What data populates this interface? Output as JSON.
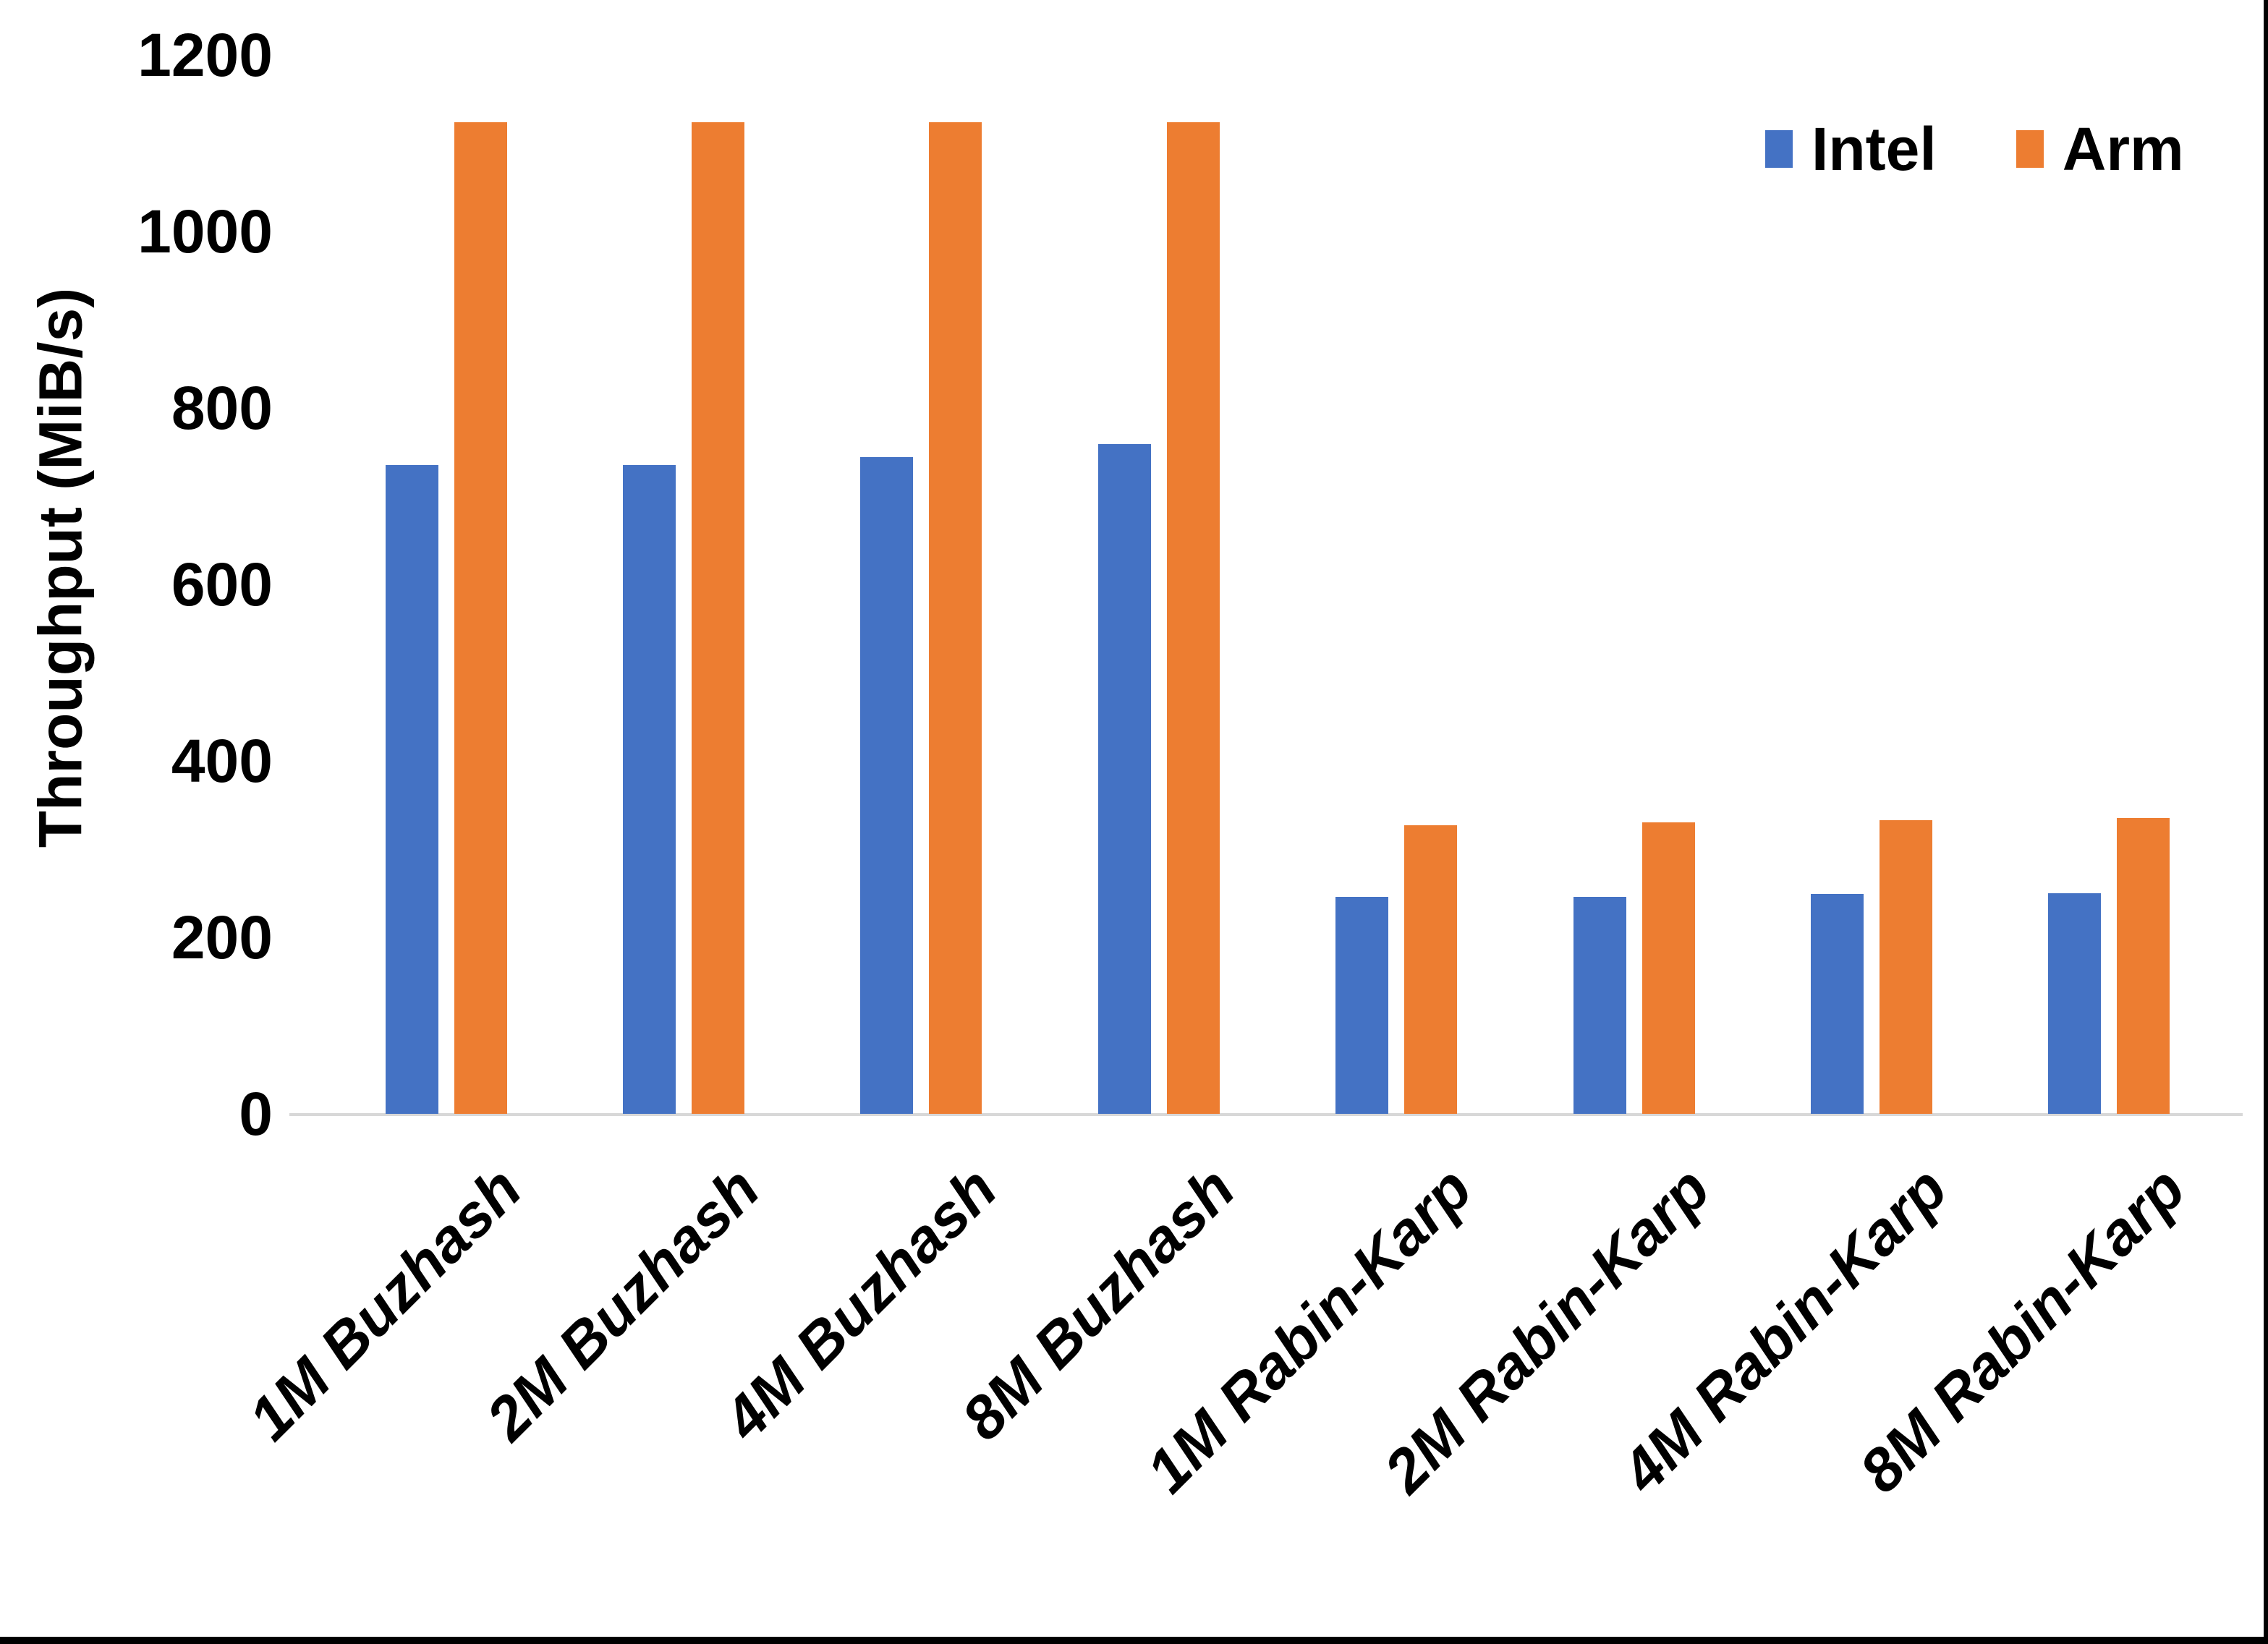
{
  "chart_data": {
    "type": "bar",
    "title": "",
    "xlabel": "",
    "ylabel": "Throughput (MiB/s)",
    "ylim": [
      0,
      1200
    ],
    "y_tick_step": 200,
    "y_ticks": [
      "0",
      "200",
      "400",
      "600",
      "800",
      "1000",
      "1200"
    ],
    "grid": false,
    "legend_position": "top-right",
    "categories": [
      "1M Buzhash",
      "2M Buzhash",
      "4M Buzhash",
      "8M Buzhash",
      "1M Rabin-Karp",
      "2M Rabin-Karp",
      "4M Rabin-Karp",
      "8M Rabin-Karp"
    ],
    "series": [
      {
        "name": "Intel",
        "color": "#4472C4",
        "values": [
          735,
          735,
          744,
          759,
          246,
          246,
          249,
          250
        ]
      },
      {
        "name": "Arm",
        "color": "#ED7D31",
        "values": [
          1124,
          1124,
          1124,
          1124,
          327,
          330,
          333,
          335
        ]
      }
    ]
  },
  "colors": {
    "intel": "#4472C4",
    "arm": "#ED7D31",
    "axis_line": "#D8D8D8",
    "text": "#000000",
    "border": "#000000"
  }
}
